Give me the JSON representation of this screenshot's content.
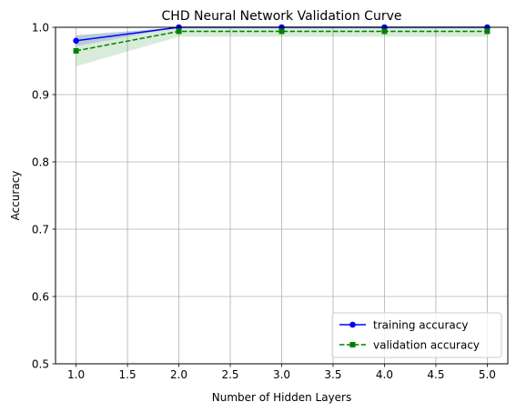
{
  "chart_data": {
    "type": "line",
    "title": "CHD Neural Network Validation Curve",
    "xlabel": "Number of Hidden Layers",
    "ylabel": "Accuracy",
    "xlim": [
      0.8,
      5.2
    ],
    "ylim": [
      0.5,
      1.0
    ],
    "xticks": [
      1.0,
      1.5,
      2.0,
      2.5,
      3.0,
      3.5,
      4.0,
      4.5,
      5.0
    ],
    "yticks": [
      0.5,
      0.6,
      0.7,
      0.8,
      0.9,
      1.0
    ],
    "xtick_labels": [
      "1.0",
      "1.5",
      "2.0",
      "2.5",
      "3.0",
      "3.5",
      "4.0",
      "4.5",
      "5.0"
    ],
    "ytick_labels": [
      "0.5",
      "0.6",
      "0.7",
      "0.8",
      "0.9",
      "1.0"
    ],
    "grid": true,
    "legend_position": "lower-right",
    "x": [
      1,
      2,
      3,
      4,
      5
    ],
    "series": [
      {
        "name": "training accuracy",
        "values": [
          0.98,
          1.0,
          1.0,
          1.0,
          1.0
        ],
        "band_low": [
          0.972,
          1.0,
          1.0,
          1.0,
          1.0
        ],
        "band_high": [
          0.988,
          1.0,
          1.0,
          1.0,
          1.0
        ],
        "color": "#0000ff",
        "marker": "circle",
        "linestyle": "solid"
      },
      {
        "name": "validation accuracy",
        "values": [
          0.965,
          0.994,
          0.994,
          0.994,
          0.994
        ],
        "band_low": [
          0.942,
          0.986,
          0.986,
          0.986,
          0.986
        ],
        "band_high": [
          0.988,
          1.0,
          1.0,
          1.0,
          1.0
        ],
        "color": "#008000",
        "marker": "square",
        "linestyle": "dashed"
      }
    ]
  }
}
